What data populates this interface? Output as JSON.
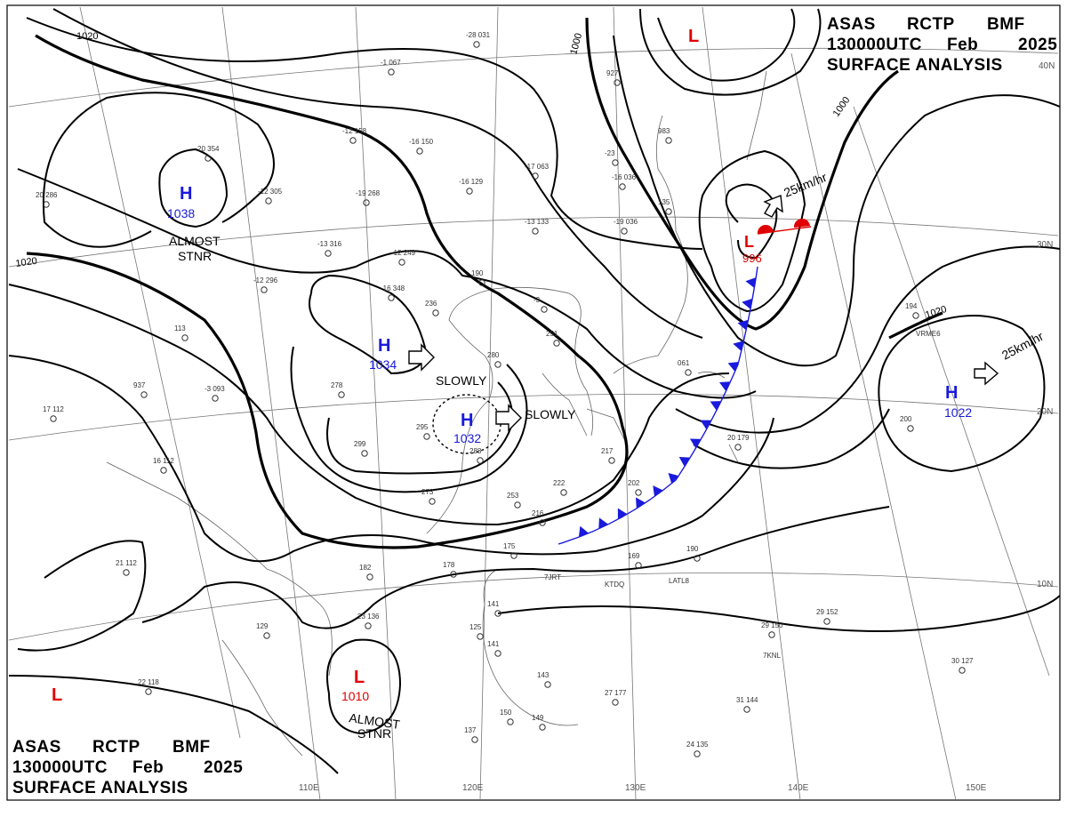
{
  "header": {
    "line1": [
      "ASAS",
      "RCTP",
      "BMF"
    ],
    "line2": [
      "130000UTC",
      "Feb",
      "2025"
    ],
    "line3": "SURFACE ANALYSIS"
  },
  "isobar_labels": [
    {
      "id": "iso-1020-nw",
      "text": "1020"
    },
    {
      "id": "iso-1020-w",
      "text": "1020"
    },
    {
      "id": "iso-1000-n",
      "text": "1000"
    },
    {
      "id": "iso-1000-ne",
      "text": "1000"
    },
    {
      "id": "iso-1020-e",
      "text": "1020"
    }
  ],
  "pressure_centers": [
    {
      "id": "high-1038",
      "kind": "H",
      "value": "1038",
      "note": [
        "ALMOST",
        "STNR"
      ],
      "color": "#1a1adc"
    },
    {
      "id": "high-1034",
      "kind": "H",
      "value": "1034",
      "motion": "SLOWLY",
      "color": "#1a1adc"
    },
    {
      "id": "high-1032",
      "kind": "H",
      "value": "1032",
      "motion": "SLOWLY",
      "color": "#1a1adc"
    },
    {
      "id": "high-1022",
      "kind": "H",
      "value": "1022",
      "motion": "25km/hr",
      "color": "#1a1adc"
    },
    {
      "id": "low-996",
      "kind": "L",
      "value": "996",
      "motion": "25km/hr",
      "color": "#e00000"
    },
    {
      "id": "low-1010",
      "kind": "L",
      "value": "1010",
      "note": [
        "ALMOST",
        "STNR"
      ],
      "color": "#e00000"
    },
    {
      "id": "low-north",
      "kind": "L",
      "value": "",
      "color": "#e00000"
    },
    {
      "id": "low-sw",
      "kind": "L",
      "value": "",
      "color": "#e00000"
    }
  ],
  "fronts": {
    "cold_front_color": "#1a1adc",
    "warm_front_color": "#e00000"
  },
  "grid": {
    "longitude_labels": [
      "110E",
      "120E",
      "130E",
      "140E",
      "150E"
    ],
    "latitude_labels": [
      "40N",
      "30N",
      "20N",
      "10N"
    ]
  },
  "station_ids": [
    "7JRT",
    "KTDQ",
    "LATL8",
    "VRME6",
    "7KNL"
  ],
  "station_obs": [
    "-28 031",
    "-1 067",
    "-12 158",
    "-16 150",
    "-17 063",
    "-16 129",
    "-19 268",
    "-12 305",
    "-13 316",
    "-12 249",
    "-16 348",
    "-12 296",
    "-13 133",
    "-16 036",
    "-19 036",
    "-23",
    "190",
    "-3",
    "251",
    "236",
    "280",
    "278",
    "937",
    "-3 093",
    "17 112",
    "16 112",
    "295",
    "299",
    "273",
    "288",
    "253",
    "217",
    "222",
    "202",
    "216",
    "175",
    "178",
    "182",
    "169",
    "190",
    "29 150",
    "29 152",
    "30 127",
    "31 144",
    "27 177",
    "143",
    "141",
    "125",
    "141",
    "137",
    "150",
    "149",
    "129",
    "21 112",
    "22 118",
    "24 135",
    "23 136",
    "200",
    "194",
    "20 179",
    "061",
    "983",
    "927",
    "135",
    "20 354",
    "20 286",
    "113"
  ]
}
